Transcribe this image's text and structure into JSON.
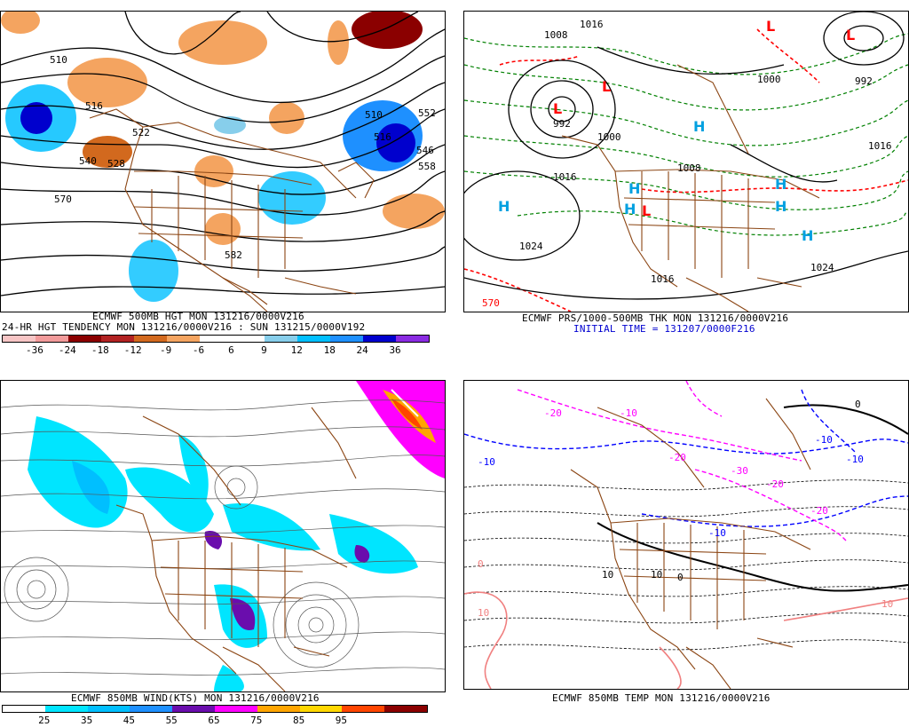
{
  "panels": [
    {
      "id": "tl",
      "caption1": "ECMWF 500MB HGT MON 131216/0000V216",
      "caption2": "24-HR HGT TENDENCY MON 131216/0000V216 : SUN 131215/0000V192",
      "colorbar": {
        "colors": [
          "#f7c5c5",
          "#f29b9b",
          "#8b0000",
          "#b22222",
          "#d2691e",
          "#f4a460",
          "#ffffff",
          "#ffffff",
          "#87ceeb",
          "#00bfff",
          "#1e90ff",
          "#0000cd",
          "#8a2be2"
        ],
        "ticks": [
          "-36",
          "-24",
          "-18",
          "-12",
          "-9",
          "-6",
          "6",
          "9",
          "12",
          "18",
          "24",
          "36"
        ]
      },
      "contour_labels": [
        "510",
        "516",
        "522",
        "528",
        "540",
        "546",
        "552",
        "558",
        "570",
        "582",
        "510",
        "516"
      ]
    },
    {
      "id": "tr",
      "caption1": "ECMWF PRS/1000-500MB THK MON 131216/0000V216",
      "caption2": "INITIAL TIME = 131207/0000F216",
      "pressure_labels": [
        "1016",
        "1008",
        "992",
        "1000",
        "1016",
        "1024",
        "1008",
        "992",
        "1016",
        "1000",
        "1024",
        "1016"
      ],
      "highs_lows": [
        "L",
        "L",
        "L",
        "L",
        "H",
        "H",
        "H",
        "H",
        "H",
        "H",
        "H",
        "L"
      ],
      "thickness_label": "570"
    },
    {
      "id": "bl",
      "caption1": "ECMWF 850MB WIND(KTS) MON 131216/0000V216",
      "colorbar": {
        "colors": [
          "#ffffff",
          "#00e5ff",
          "#00bfff",
          "#1e90ff",
          "#6a0dad",
          "#ff00ff",
          "#ffa500",
          "#ffd700",
          "#ff4500",
          "#8b0000"
        ],
        "ticks": [
          "25",
          "35",
          "45",
          "55",
          "65",
          "75",
          "85",
          "95"
        ]
      }
    },
    {
      "id": "br",
      "caption1": "ECMWF 850MB TEMP MON 131216/0000V216",
      "temp_labels": [
        "-10",
        "-20",
        "-10",
        "-20",
        "-30",
        "-20",
        "-10",
        "-10",
        "-20",
        "-10",
        "0",
        "0",
        "10",
        "10",
        "10",
        "0",
        "10"
      ]
    }
  ],
  "colors": {
    "geography": "#8b4513",
    "contour": "#000000",
    "thickness": "#008000",
    "thickness_warm": "#ff0000",
    "hl_symbol": "#00a0e0",
    "low_symbol": "#ff0000",
    "temp_cold": "#0000ff",
    "temp_very_cold": "#ff00ff",
    "temp_warm": "#f08080"
  }
}
